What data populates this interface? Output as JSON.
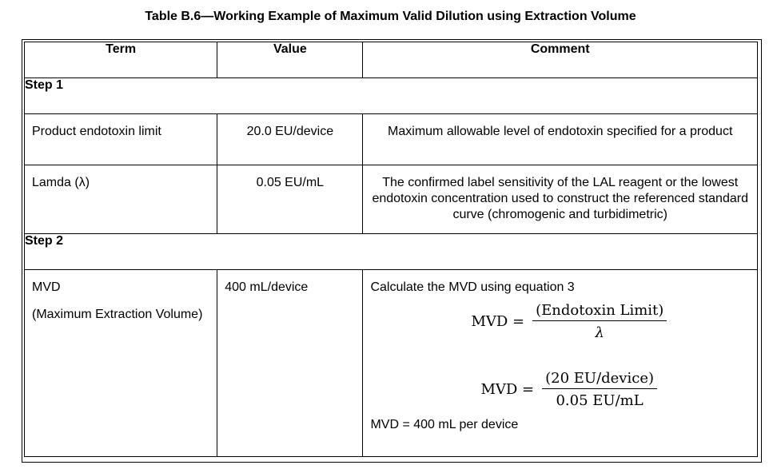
{
  "caption": "Table B.6—Working Example of Maximum Valid Dilution using Extraction Volume",
  "headers": {
    "term": "Term",
    "value": "Value",
    "comment": "Comment"
  },
  "step1": "Step 1",
  "rows": [
    {
      "term": "Product endotoxin limit",
      "value": "20.0 EU/device",
      "comment": "Maximum allowable level of endotoxin specified for a product"
    },
    {
      "term": "Lamda (λ)",
      "value": "0.05 EU/mL",
      "comment": "The confirmed label sensitivity of the LAL reagent or the lowest endotoxin concentration used to construct the referenced standard curve (chromogenic and turbidimetric)"
    }
  ],
  "step2": "Step 2",
  "mvd": {
    "term": "MVD",
    "term_sub": "(Maximum Extraction Volume)",
    "value": "400 mL/device",
    "intro": "Calculate the MVD using equation 3",
    "eq1_lhs": "MVD =",
    "eq1_num": "(Endotoxin Limit)",
    "eq1_den": "λ",
    "eq2_lhs": "MVD =",
    "eq2_num": "(20 EU/device)",
    "eq2_den": "0.05 EU/mL",
    "result": "MVD = 400 mL per device"
  }
}
